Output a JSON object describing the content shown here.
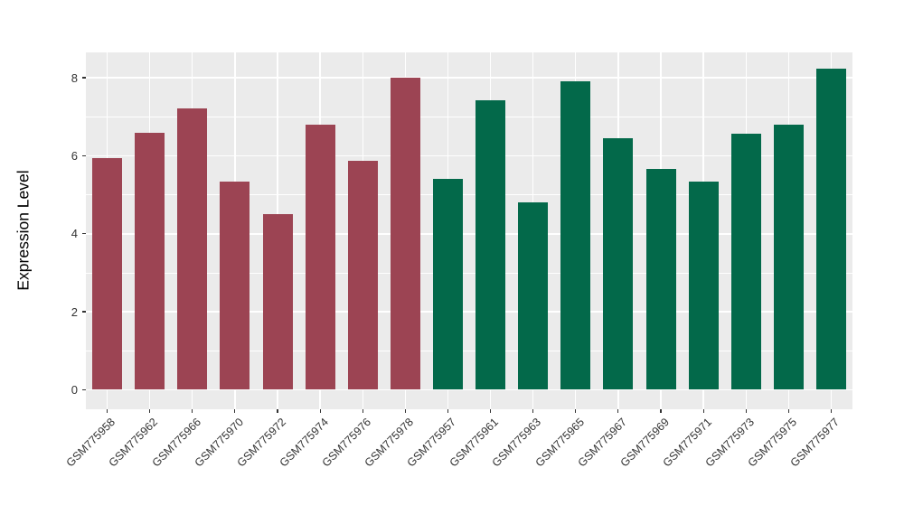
{
  "chart_data": {
    "type": "bar",
    "title": "",
    "xlabel": "",
    "ylabel": "Expression Level",
    "categories": [
      "GSM775958",
      "GSM775962",
      "GSM775966",
      "GSM775970",
      "GSM775972",
      "GSM775974",
      "GSM775976",
      "GSM775978",
      "GSM775957",
      "GSM775961",
      "GSM775963",
      "GSM775965",
      "GSM775967",
      "GSM775969",
      "GSM775971",
      "GSM775973",
      "GSM775975",
      "GSM775977"
    ],
    "values": [
      5.93,
      6.58,
      7.21,
      5.33,
      4.5,
      6.79,
      5.86,
      8.0,
      5.41,
      7.42,
      4.8,
      7.91,
      6.44,
      5.66,
      5.33,
      6.57,
      6.79,
      8.24
    ],
    "bar_colors_hex": [
      "#9C4453",
      "#9C4453",
      "#9C4453",
      "#9C4453",
      "#9C4453",
      "#9C4453",
      "#9C4453",
      "#9C4453",
      "#03694A",
      "#03694A",
      "#03694A",
      "#03694A",
      "#03694A",
      "#03694A",
      "#03694A",
      "#03694A",
      "#03694A",
      "#03694A"
    ],
    "yticks": [
      0,
      2,
      4,
      6,
      8
    ],
    "minor_gridlines": [
      1,
      3,
      5,
      7
    ],
    "ylim": [
      -0.5,
      8.65
    ],
    "grid": "on",
    "legend": "none",
    "panel_background_hex": "#EBEBEB",
    "gridline_color_hex": "#FFFFFF"
  }
}
